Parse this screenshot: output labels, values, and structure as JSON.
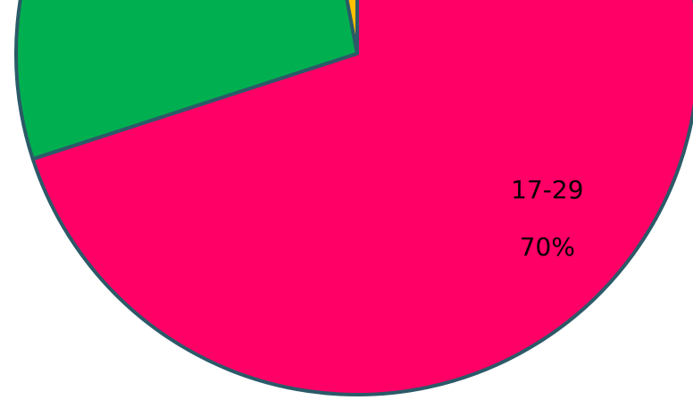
{
  "chart_data": {
    "type": "pie",
    "categories": [
      "17-29",
      null,
      null
    ],
    "values": [
      70,
      27,
      3
    ],
    "value_labels": [
      "70%",
      null,
      null
    ],
    "colors": [
      "#ff0066",
      "#00b050",
      "#ffc000"
    ],
    "edge_color": "#2b5a68"
  }
}
